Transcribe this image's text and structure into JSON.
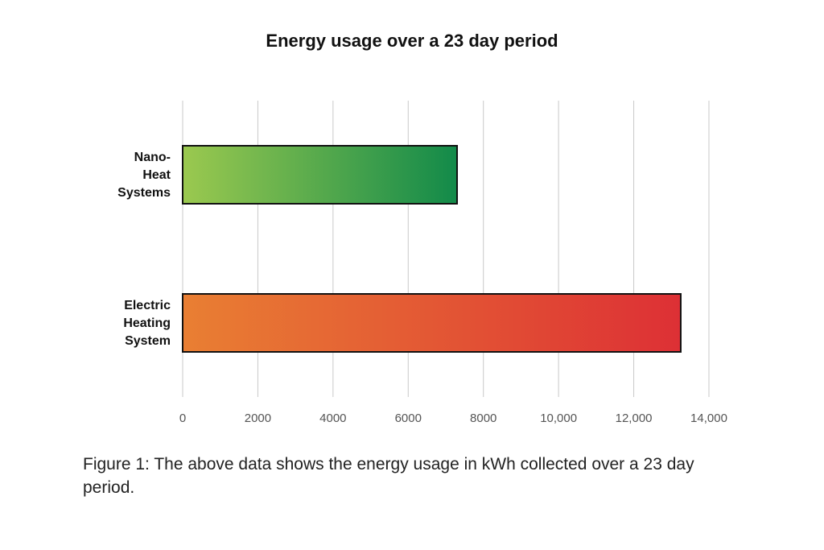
{
  "chart_data": {
    "type": "bar",
    "orientation": "horizontal",
    "title": "Energy usage over a 23 day period",
    "xlabel": "",
    "ylabel": "",
    "categories": [
      {
        "lines": [
          "Nano-",
          "Heat",
          "Systems"
        ],
        "value": 7300,
        "colors": [
          "#9bc94f",
          "#128a4a"
        ]
      },
      {
        "lines": [
          "Electric",
          "Heating",
          "System"
        ],
        "value": 13250,
        "colors": [
          "#e97f33",
          "#dd3035"
        ]
      }
    ],
    "xlim": [
      0,
      14000
    ],
    "xticks": [
      0,
      2000,
      4000,
      6000,
      8000,
      10000,
      12000,
      14000
    ],
    "xtick_labels": [
      "0",
      "2000",
      "4000",
      "6000",
      "8000",
      "10,000",
      "12,000",
      "14,000"
    ],
    "grid": true
  },
  "caption": "Figure 1: The above data shows the energy usage in kWh collected over a 23 day period."
}
